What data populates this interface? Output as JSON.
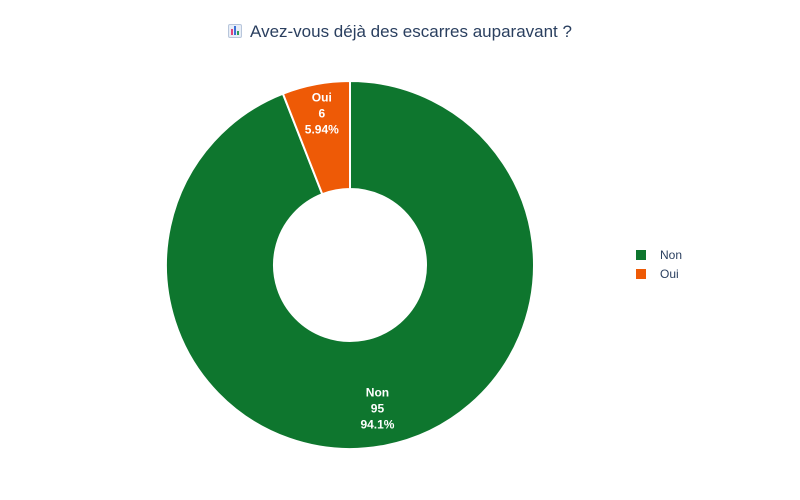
{
  "title_icon": "bar-chart-icon",
  "title": "Avez-vous déjà des escarres auparavant ?",
  "colors": {
    "Non": "#0e762e",
    "Oui": "#ee5a06",
    "title": "#2a3f5f"
  },
  "chart_data": {
    "type": "pie",
    "hole": true,
    "categories": [
      "Non",
      "Oui"
    ],
    "values": [
      95,
      6
    ],
    "percent_labels": [
      "94.1%",
      "5.94%"
    ],
    "legend": [
      "Non",
      "Oui"
    ],
    "legend_position": "right"
  }
}
